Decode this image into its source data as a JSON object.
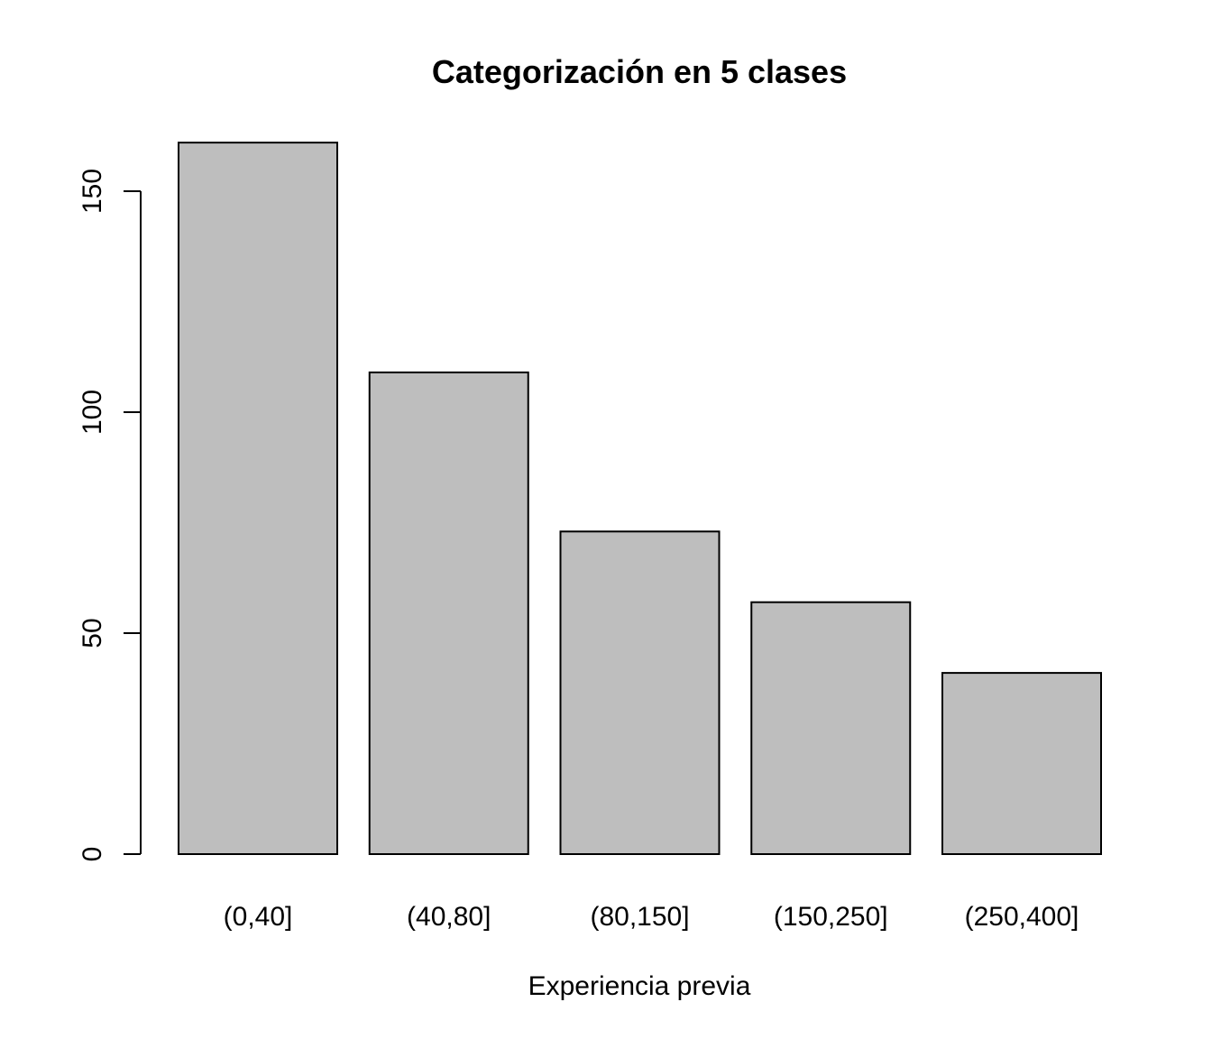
{
  "chart_data": {
    "type": "bar",
    "title": "Categorización en 5 clases",
    "xlabel": "Experiencia previa",
    "ylabel": "",
    "categories": [
      "(0,40]",
      "(40,80]",
      "(80,150]",
      "(150,250]",
      "(250,400]"
    ],
    "values": [
      161,
      109,
      73,
      57,
      41
    ],
    "yticks": [
      0,
      50,
      100,
      150
    ],
    "ylim": [
      0,
      161
    ],
    "grid": false,
    "legend": "none",
    "bar_color": "#bebebe",
    "border_color": "#000000"
  }
}
